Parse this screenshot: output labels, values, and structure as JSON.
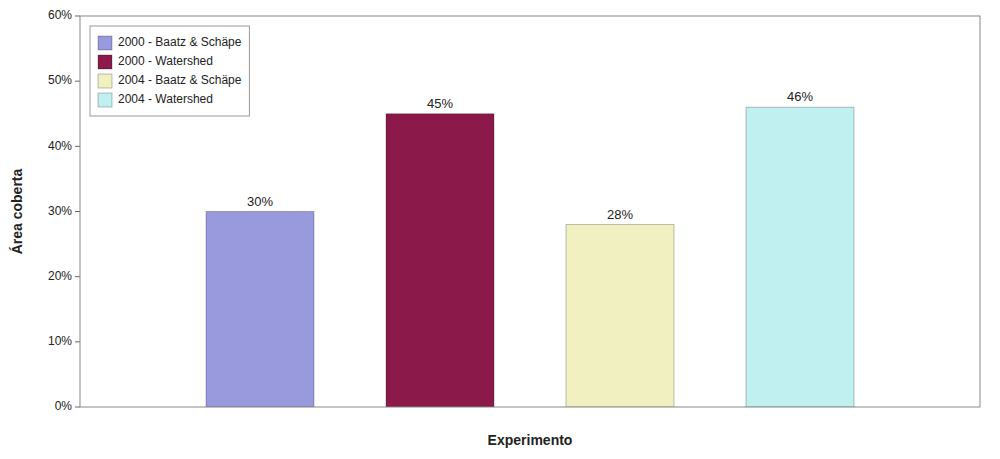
{
  "chart_data": {
    "type": "bar",
    "categories": [
      "2000 - Baatz & Schäpe",
      "2000 - Watershed",
      "2004 - Baatz & Schäpe",
      "2004 - Watershed"
    ],
    "values": [
      0.3,
      0.45,
      0.28,
      0.46
    ],
    "value_labels": [
      "30%",
      "45%",
      "28%",
      "46%"
    ],
    "colors": [
      "#9999dd",
      "#8b1a4a",
      "#f0f0c0",
      "#c0f0f0"
    ],
    "xlabel": "Experimento",
    "ylabel": "Área coberta",
    "ylim": [
      0,
      0.6
    ],
    "yticks": [
      {
        "value": 0.0,
        "label": "0%"
      },
      {
        "value": 0.1,
        "label": "10%"
      },
      {
        "value": 0.2,
        "label": "20%"
      },
      {
        "value": 0.3,
        "label": "30%"
      },
      {
        "value": 0.4,
        "label": "40%"
      },
      {
        "value": 0.5,
        "label": "50%"
      },
      {
        "value": 0.6,
        "label": "60%"
      }
    ],
    "grid": false,
    "legend": "upper left",
    "data_labels": true,
    "tick_labels": "y"
  }
}
